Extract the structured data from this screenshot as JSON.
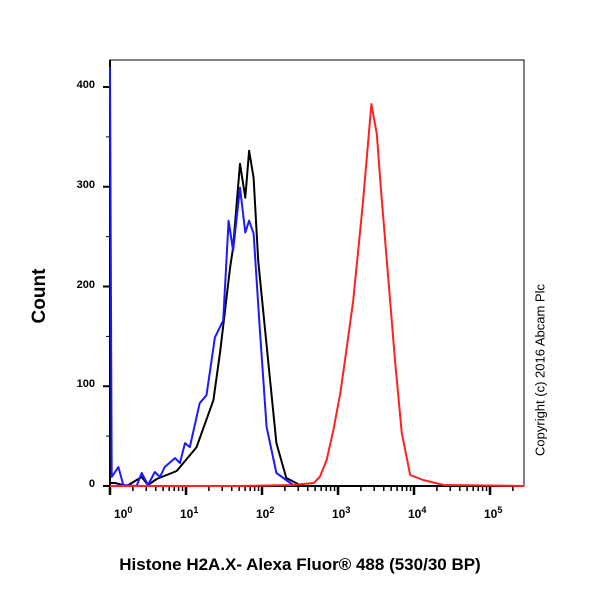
{
  "chart_data": {
    "type": "line",
    "title": "",
    "xlabel": "Histone H2A.X- Alexa Fluor® 488 (530/30 BP)",
    "ylabel": "Count",
    "x_scale": "log10",
    "xlim_log10": [
      0,
      5.45
    ],
    "ylim": [
      0,
      430
    ],
    "y_ticks": [
      "0",
      "100",
      "200",
      "300",
      "400"
    ],
    "x_ticks": [
      {
        "base": "10",
        "exp": "0"
      },
      {
        "base": "10",
        "exp": "1"
      },
      {
        "base": "10",
        "exp": "2"
      },
      {
        "base": "10",
        "exp": "3"
      },
      {
        "base": "10",
        "exp": "4"
      },
      {
        "base": "10",
        "exp": "5"
      }
    ],
    "grid": false,
    "annotation": "Copyright (c) 2016 Abcam Plc",
    "series": [
      {
        "name": "black",
        "color": "#000000",
        "x_log10": [
          0,
          0.066,
          0.219,
          0.417,
          0.5,
          0.614,
          0.877,
          1.14,
          1.36,
          1.45,
          1.58,
          1.62,
          1.67,
          1.71,
          1.78,
          1.83,
          1.89,
          1.95,
          2.08,
          2.19,
          2.32,
          2.5
        ],
        "y": [
          3,
          3,
          0,
          9,
          1,
          7,
          15,
          39,
          86,
          135,
          219,
          239,
          286,
          323,
          289,
          336,
          309,
          226,
          126,
          43,
          8,
          1
        ]
      },
      {
        "name": "blue",
        "color": "#1a1aff",
        "x_log10": [
          0,
          0.022,
          0.11,
          0.175,
          0.35,
          0.417,
          0.5,
          0.59,
          0.658,
          0.72,
          0.855,
          0.92,
          0.987,
          1.05,
          1.18,
          1.27,
          1.38,
          1.49,
          1.56,
          1.62,
          1.71,
          1.78,
          1.83,
          1.89,
          1.97,
          2.06,
          2.19,
          2.41
        ],
        "y": [
          420,
          9,
          19,
          1,
          0,
          13,
          1,
          14,
          9,
          19,
          28,
          23,
          43,
          39,
          83,
          91,
          149,
          166,
          266,
          236,
          299,
          254,
          266,
          253,
          159,
          59,
          13,
          1
        ]
      },
      {
        "name": "red",
        "color": "#ff2020",
        "x_log10": [
          0,
          1.69,
          2.41,
          2.68,
          2.76,
          2.85,
          2.94,
          3.03,
          3.11,
          3.2,
          3.27,
          3.33,
          3.44,
          3.51,
          3.57,
          3.66,
          3.75,
          3.84,
          3.95,
          4.12,
          4.39,
          5.45
        ],
        "y": [
          0,
          0,
          1,
          3,
          9,
          26,
          56,
          93,
          136,
          186,
          239,
          286,
          383,
          353,
          293,
          209,
          126,
          53,
          11,
          6,
          1,
          0
        ]
      }
    ]
  }
}
